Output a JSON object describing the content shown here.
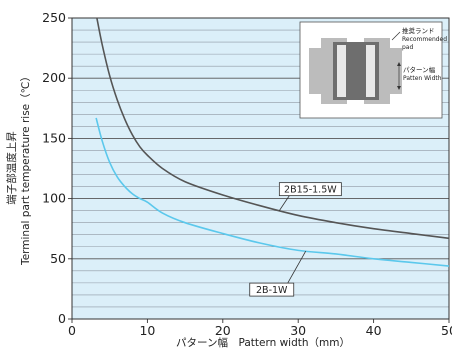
{
  "chart_data": {
    "type": "line",
    "xlabel": "パターン幅　Pattern width（mm）",
    "ylabel_jp": "端子部温度上昇",
    "ylabel_en": "Terminal part temperature rise（℃）",
    "xlim": [
      0,
      50
    ],
    "ylim": [
      0,
      250
    ],
    "x_ticks": [
      0,
      10,
      20,
      30,
      40,
      50
    ],
    "y_ticks": [
      0,
      50,
      100,
      150,
      200,
      250
    ],
    "grid": true,
    "series": [
      {
        "name": "2B15-1.5W",
        "color": "#555555",
        "points": [
          [
            3.3,
            250
          ],
          [
            4,
            228
          ],
          [
            5,
            202
          ],
          [
            6,
            182
          ],
          [
            7,
            166
          ],
          [
            8,
            153
          ],
          [
            9,
            143
          ],
          [
            10,
            136
          ],
          [
            12,
            125
          ],
          [
            15,
            114
          ],
          [
            20,
            103
          ],
          [
            25,
            94
          ],
          [
            30,
            86
          ],
          [
            35,
            80
          ],
          [
            40,
            75
          ],
          [
            45,
            71
          ],
          [
            50,
            67
          ]
        ]
      },
      {
        "name": "2B-1W",
        "color": "#5bc8ec",
        "points": [
          [
            3.2,
            167
          ],
          [
            4,
            148
          ],
          [
            5,
            130
          ],
          [
            6,
            118
          ],
          [
            7,
            110
          ],
          [
            8,
            104
          ],
          [
            9,
            100
          ],
          [
            10,
            97
          ],
          [
            12,
            88
          ],
          [
            15,
            80
          ],
          [
            20,
            71
          ],
          [
            25,
            63
          ],
          [
            30,
            57
          ],
          [
            35,
            54
          ],
          [
            40,
            50
          ],
          [
            45,
            47
          ],
          [
            50,
            44
          ]
        ]
      }
    ],
    "annotations": [
      {
        "label": "2B15-1.5W",
        "series": 0,
        "anchor_x": 27.5
      },
      {
        "label": "2B-1W",
        "series": 1,
        "anchor_x": 31
      }
    ]
  },
  "inset": {
    "label1_jp": "推奨ランド",
    "label1_en_1": "Recommended",
    "label1_en_2": "pad",
    "label2_jp": "パターン幅",
    "label2_en": "Patten Width"
  }
}
